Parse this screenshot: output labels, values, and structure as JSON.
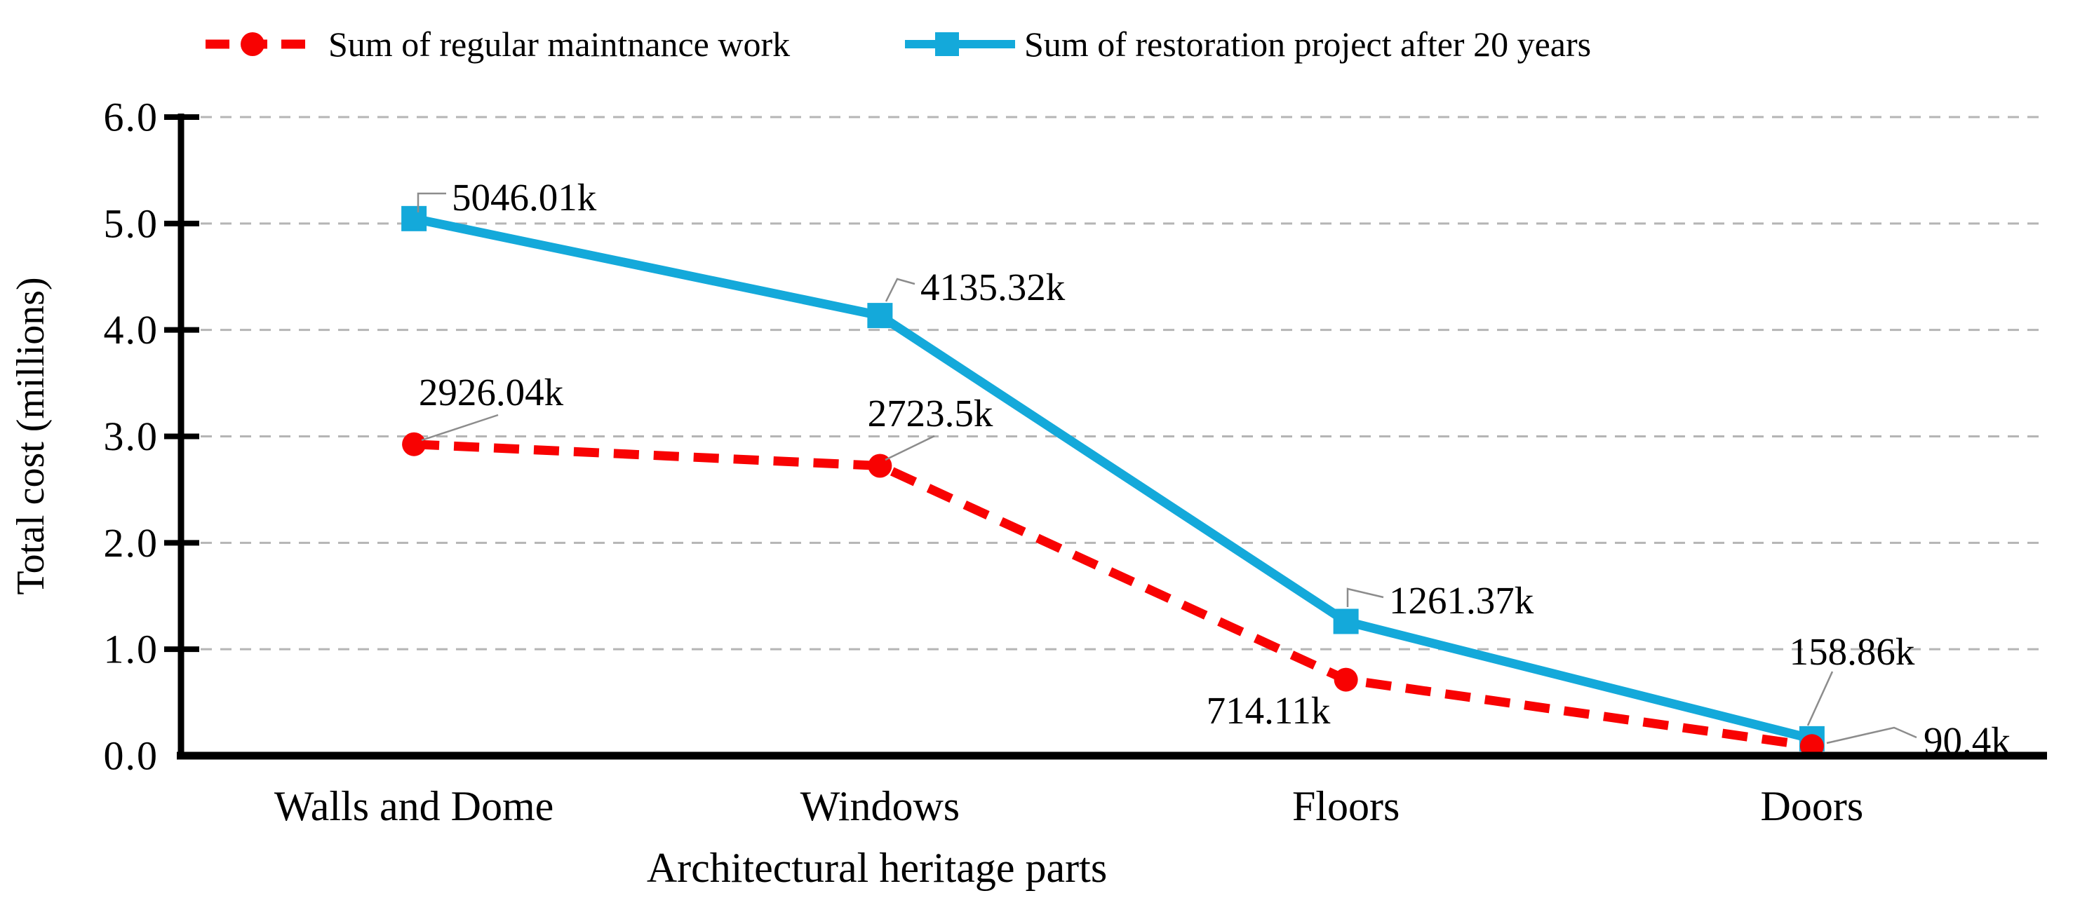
{
  "chart_data": {
    "type": "line",
    "title": "",
    "xlabel": "Architectural heritage parts",
    "ylabel": "Total cost (millions)",
    "categories": [
      "Walls and Dome",
      "Windows",
      "Floors",
      "Doors"
    ],
    "y_ticks": [
      "0.0",
      "1.0",
      "2.0",
      "3.0",
      "4.0",
      "5.0",
      "6.0"
    ],
    "ylim": [
      0,
      6
    ],
    "grid": "horizontal-dashed",
    "legend_position": "top",
    "value_unit": "k (thousands), axis in millions",
    "series": [
      {
        "name": "Sum of regular maintnance work",
        "color": "#f80202",
        "line_style": "dashed",
        "marker": "circle",
        "values_k": [
          2926.04,
          2723.5,
          714.11,
          90.4
        ],
        "point_labels": [
          "2926.04k",
          "2723.5k",
          "714.11k",
          "90.4k"
        ]
      },
      {
        "name": "Sum of restoration project after 20 years",
        "color": "#14a9da",
        "line_style": "solid",
        "marker": "square",
        "values_k": [
          5046.01,
          4135.32,
          1261.37,
          158.86
        ],
        "point_labels": [
          "5046.01k",
          "4135.32k",
          "1261.37k",
          "158.86k"
        ]
      }
    ],
    "colors": {
      "grid": "#b5b5b5",
      "axis": "#000000",
      "leader": "#8c8c8c",
      "background": "#ffffff"
    }
  }
}
